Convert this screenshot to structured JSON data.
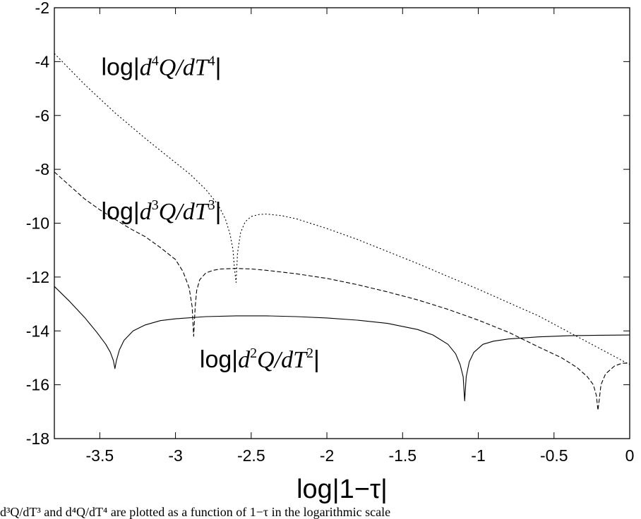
{
  "chart_data": {
    "type": "line",
    "xlabel": "log|1−τ|",
    "ylabel": "",
    "xlim": [
      -3.8,
      0
    ],
    "ylim": [
      -18,
      -2
    ],
    "xticks": [
      -3.5,
      -3,
      -2.5,
      -2,
      -1.5,
      -1,
      -0.5,
      0
    ],
    "xtick_labels": [
      "-3.5",
      "-3",
      "-2.5",
      "-2",
      "-1.5",
      "-1",
      "-0.5",
      "0"
    ],
    "yticks": [
      -18,
      -16,
      -14,
      -12,
      -10,
      -8,
      -6,
      -4,
      -2
    ],
    "ytick_labels": [
      "-18",
      "-16",
      "-14",
      "-12",
      "-10",
      "-8",
      "-6",
      "-4",
      "-2"
    ],
    "legend": "none",
    "grid": false,
    "series": [
      {
        "name": "log|d²Q/dT²|",
        "style": "solid",
        "x": [
          -3.8,
          -3.7,
          -3.6,
          -3.52,
          -3.46,
          -3.43,
          -3.41,
          -3.4,
          -3.39,
          -3.37,
          -3.34,
          -3.28,
          -3.2,
          -3.1,
          -3.0,
          -2.8,
          -2.6,
          -2.4,
          -2.2,
          -2.0,
          -1.8,
          -1.6,
          -1.4,
          -1.3,
          -1.2,
          -1.15,
          -1.12,
          -1.1,
          -1.09,
          -1.08,
          -1.06,
          -1.03,
          -0.97,
          -0.9,
          -0.8,
          -0.6,
          -0.4,
          -0.2,
          0.0
        ],
        "y": [
          -12.35,
          -12.9,
          -13.5,
          -14.05,
          -14.5,
          -14.8,
          -15.1,
          -15.4,
          -15.1,
          -14.7,
          -14.35,
          -14.0,
          -13.78,
          -13.62,
          -13.55,
          -13.47,
          -13.44,
          -13.44,
          -13.47,
          -13.52,
          -13.6,
          -13.72,
          -13.95,
          -14.15,
          -14.5,
          -14.85,
          -15.25,
          -15.7,
          -16.6,
          -15.7,
          -15.15,
          -14.8,
          -14.5,
          -14.38,
          -14.3,
          -14.22,
          -14.18,
          -14.16,
          -14.15
        ]
      },
      {
        "name": "log|d³Q/dT³|",
        "style": "dashed",
        "x": [
          -3.8,
          -3.7,
          -3.6,
          -3.5,
          -3.4,
          -3.3,
          -3.2,
          -3.1,
          -3.0,
          -2.95,
          -2.91,
          -2.89,
          -2.88,
          -2.87,
          -2.86,
          -2.84,
          -2.8,
          -2.75,
          -2.7,
          -2.6,
          -2.5,
          -2.4,
          -2.2,
          -2.0,
          -1.8,
          -1.6,
          -1.4,
          -1.2,
          -1.0,
          -0.8,
          -0.6,
          -0.45,
          -0.35,
          -0.28,
          -0.24,
          -0.22,
          -0.21,
          -0.2,
          -0.19,
          -0.16,
          -0.1,
          -0.05,
          0.0
        ],
        "y": [
          -8.1,
          -8.6,
          -9.1,
          -9.5,
          -9.85,
          -10.2,
          -10.5,
          -10.9,
          -11.35,
          -11.8,
          -12.4,
          -13.1,
          -14.2,
          -13.1,
          -12.5,
          -12.1,
          -11.85,
          -11.75,
          -11.7,
          -11.68,
          -11.7,
          -11.75,
          -11.88,
          -12.05,
          -12.28,
          -12.55,
          -12.85,
          -13.2,
          -13.6,
          -14.05,
          -14.6,
          -15.0,
          -15.35,
          -15.7,
          -16.0,
          -16.4,
          -16.95,
          -16.5,
          -16.0,
          -15.6,
          -15.3,
          -15.2,
          -15.2
        ]
      },
      {
        "name": "log|d⁴Q/dT⁴|",
        "style": "dotted",
        "x": [
          -3.8,
          -3.6,
          -3.4,
          -3.2,
          -3.0,
          -2.9,
          -2.8,
          -2.72,
          -2.67,
          -2.64,
          -2.62,
          -2.61,
          -2.6,
          -2.59,
          -2.57,
          -2.54,
          -2.5,
          -2.45,
          -2.4,
          -2.3,
          -2.2,
          -2.0,
          -1.8,
          -1.6,
          -1.4,
          -1.2,
          -1.0,
          -0.8,
          -0.6,
          -0.4,
          -0.2,
          0.0
        ],
        "y": [
          -3.7,
          -4.85,
          -5.9,
          -6.85,
          -7.75,
          -8.2,
          -8.75,
          -9.3,
          -9.85,
          -10.4,
          -11.0,
          -11.7,
          -12.2,
          -11.1,
          -10.35,
          -9.95,
          -9.75,
          -9.68,
          -9.66,
          -9.72,
          -9.84,
          -10.2,
          -10.6,
          -11.05,
          -11.5,
          -11.98,
          -12.45,
          -12.95,
          -13.45,
          -14.05,
          -14.65,
          -15.25
        ]
      }
    ],
    "annotations": [
      {
        "id": "d4",
        "parts": [
          "log|",
          "d",
          "4",
          "Q/dT",
          "4",
          "|"
        ],
        "x": -3.49,
        "y": -4.5
      },
      {
        "id": "d3",
        "parts": [
          "log|",
          "d",
          "3",
          "Q/dT",
          "3",
          "|"
        ],
        "x": -3.49,
        "y": -9.85
      },
      {
        "id": "d2",
        "parts": [
          "log|",
          "d",
          "2",
          "Q/dT",
          "2",
          "|"
        ],
        "x": -2.84,
        "y": -15.35
      }
    ]
  },
  "caption": "d³Q/dT³ and d⁴Q/dT⁴ are plotted as a function of 1−τ in the logarithmic scale"
}
